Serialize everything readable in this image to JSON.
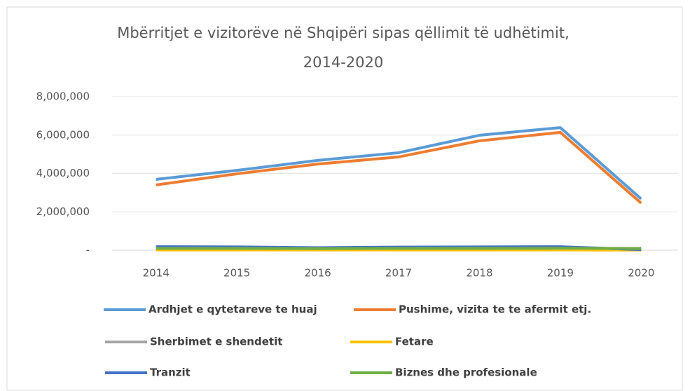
{
  "chart_data": {
    "type": "line",
    "title": "Mbërritjet e vizitorëve në Shqipëri sipas qëllimit të udhëtimit, 2014-2020",
    "categories": [
      "2014",
      "2015",
      "2016",
      "2017",
      "2018",
      "2019",
      "2020"
    ],
    "series": [
      {
        "name": "Ardhjet e qytetareve te huaj",
        "color": "#5b9bd5",
        "values": [
          3690000,
          4160000,
          4680000,
          5080000,
          5990000,
          6390000,
          2670000
        ]
      },
      {
        "name": "Pushime, vizita te te afermit etj.",
        "color": "#ed7d31",
        "values": [
          3400000,
          3980000,
          4490000,
          4860000,
          5700000,
          6140000,
          2450000
        ]
      },
      {
        "name": "Sherbimet e shendetit",
        "color": "#a5a5a5",
        "values": [
          50000,
          50000,
          40000,
          50000,
          50000,
          60000,
          20000
        ]
      },
      {
        "name": "Fetare",
        "color": "#ffc000",
        "values": [
          10000,
          10000,
          10000,
          10000,
          10000,
          10000,
          5000
        ]
      },
      {
        "name": "Tranzit",
        "color": "#4472c4",
        "values": [
          180000,
          170000,
          130000,
          160000,
          170000,
          180000,
          30000
        ]
      },
      {
        "name": "Biznes dhe profesionale",
        "color": "#70ad47",
        "values": [
          90000,
          90000,
          80000,
          90000,
          90000,
          100000,
          90000
        ]
      }
    ],
    "ylim": [
      0,
      8000000
    ],
    "yticks": [
      {
        "value": 0,
        "label": "-"
      },
      {
        "value": 2000000,
        "label": "2,000,000"
      },
      {
        "value": 4000000,
        "label": "4,000,000"
      },
      {
        "value": 6000000,
        "label": "6,000,000"
      },
      {
        "value": 8000000,
        "label": "8,000,000"
      }
    ],
    "grid": true
  }
}
